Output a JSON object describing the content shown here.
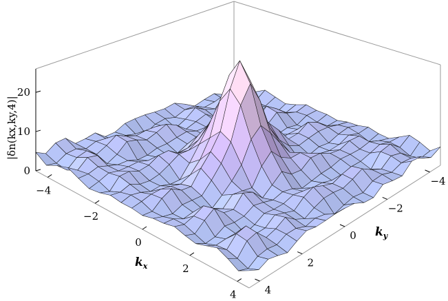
{
  "chart_data": {
    "type": "surface3d",
    "z_label": "|δn(kx,ky,4)|",
    "x_label": "k",
    "x_label_sub": "x",
    "y_label": "k",
    "y_label_sub": "y",
    "x_ticks": [
      "−4",
      "−2",
      "0",
      "2",
      "4"
    ],
    "y_ticks": [
      "−4",
      "−2",
      "0",
      "2",
      "4"
    ],
    "z_ticks": [
      "0",
      "10",
      "20"
    ],
    "x_range": [
      -4.5,
      4.5
    ],
    "y_range": [
      -4.5,
      4.5
    ],
    "z_range": [
      0,
      26
    ],
    "peak": {
      "x": 0,
      "y": 0,
      "z": 25
    },
    "grid_lines": 21,
    "colors": {
      "surface_low": "#a9c8f4",
      "surface_mid": "#c8b2f0",
      "surface_high": "#f2d2e8",
      "mesh": "#1a1a1a",
      "box": "#9a9a9a"
    }
  }
}
